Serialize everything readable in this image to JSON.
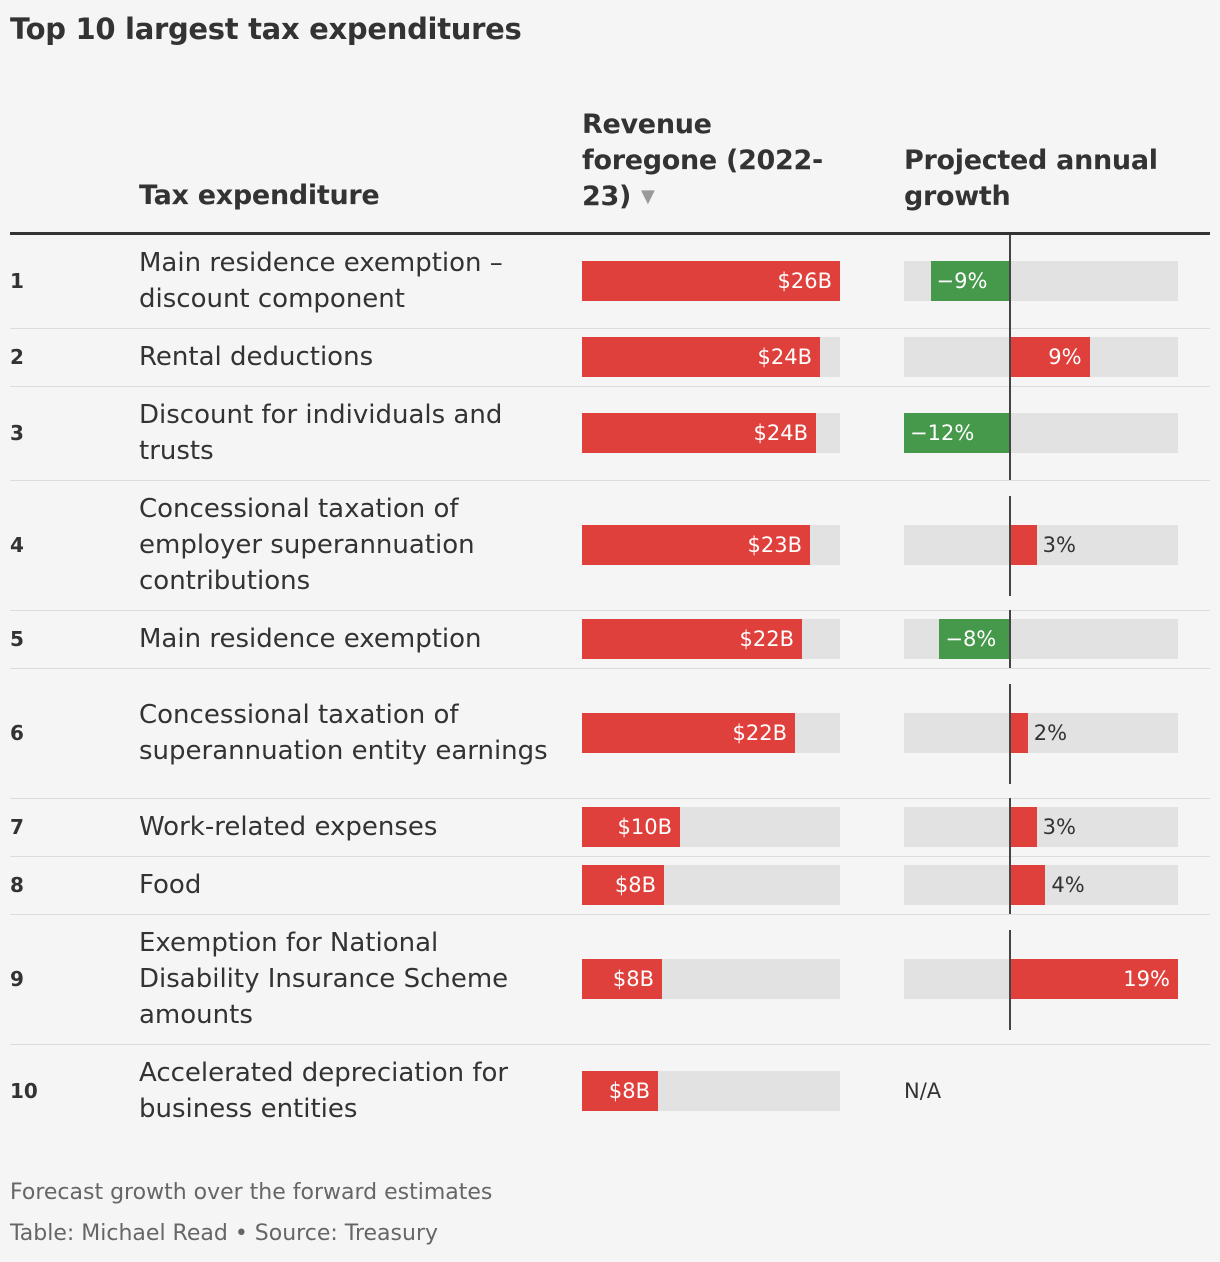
{
  "title": "Top 10 largest tax expenditures",
  "headers": {
    "expenditure": "Tax expenditure",
    "revenue": "Revenue foregone (2022-23)",
    "sort_icon": "sort-descending-icon",
    "growth": "Projected annual growth"
  },
  "footnote": "Forecast growth over the forward estimates",
  "credit": "Table: Michael Read • Source: Treasury",
  "colors": {
    "revenue_bar": "#e0403b",
    "growth_positive": "#e0403b",
    "growth_negative": "#46984b",
    "track": "#e2e2e2"
  },
  "chart_data": {
    "type": "table",
    "revenue_max": 26,
    "growth_range": [
      -12,
      19
    ],
    "columns": [
      "",
      "Tax expenditure",
      "Revenue foregone (2022-23)",
      "Projected annual growth"
    ],
    "rows": [
      {
        "rank": "1",
        "name": "Main residence exemption – discount component",
        "revenue": 26,
        "revenue_label": "$26B",
        "growth": -9,
        "growth_label": "−9%"
      },
      {
        "rank": "2",
        "name": "Rental deductions",
        "revenue": 24,
        "revenue_label": "$24B",
        "growth": 9,
        "growth_label": "9%"
      },
      {
        "rank": "3",
        "name": "Discount for individuals and trusts",
        "revenue": 23.6,
        "revenue_label": "$24B",
        "growth": -12,
        "growth_label": "−12%"
      },
      {
        "rank": "4",
        "name": "Concessional taxation of employer superannuation contributions",
        "revenue": 23,
        "revenue_label": "$23B",
        "growth": 3,
        "growth_label": "3%"
      },
      {
        "rank": "5",
        "name": "Main residence exemption",
        "revenue": 22.2,
        "revenue_label": "$22B",
        "growth": -8,
        "growth_label": "−8%"
      },
      {
        "rank": "6",
        "name": "Concessional taxation of superannuation entity earnings",
        "revenue": 21.5,
        "revenue_label": "$22B",
        "growth": 2,
        "growth_label": "2%"
      },
      {
        "rank": "7",
        "name": "Work-related expenses",
        "revenue": 9.9,
        "revenue_label": "$10B",
        "growth": 3,
        "growth_label": "3%"
      },
      {
        "rank": "8",
        "name": "Food",
        "revenue": 8.3,
        "revenue_label": "$8B",
        "growth": 4,
        "growth_label": "4%"
      },
      {
        "rank": "9",
        "name": "Exemption for National Disability Insurance Scheme amounts",
        "revenue": 8.1,
        "revenue_label": "$8B",
        "growth": 19,
        "growth_label": "19%"
      },
      {
        "rank": "10",
        "name": "Accelerated depreciation for business entities",
        "revenue": 7.7,
        "revenue_label": "$8B",
        "growth": null,
        "growth_label": "N/A"
      }
    ]
  }
}
